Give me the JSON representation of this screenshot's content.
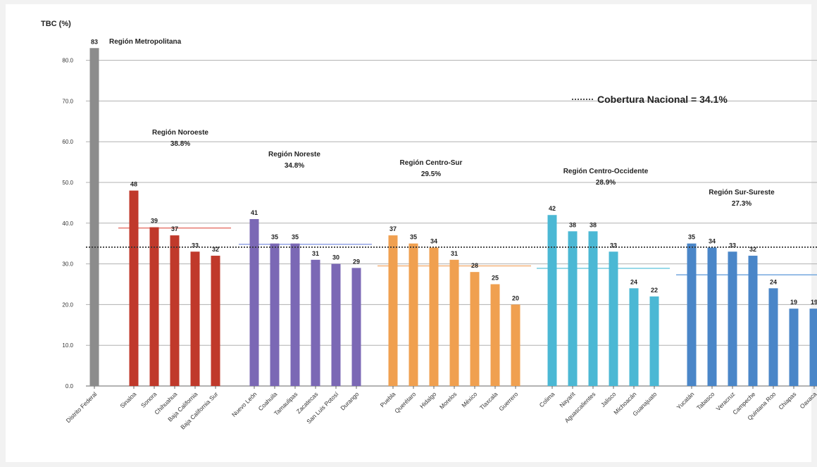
{
  "chart_data": {
    "type": "bar",
    "ylabel": "TBC (%)",
    "ylim": [
      0,
      85
    ],
    "yticks": [
      "0.0",
      "10.0",
      "20.0",
      "30.0",
      "40.0",
      "50.0",
      "60.0",
      "70.0",
      "80.0"
    ],
    "grid": true,
    "reference_line": {
      "label": "Cobertura Nacional = 34.1%",
      "value": 34.1
    },
    "regions": [
      {
        "name": "Región Metropolitana",
        "average_label": "",
        "average": null,
        "color": "#8c8c8c",
        "states": [
          {
            "name": "Distrito Federal",
            "value": 83,
            "label": "83"
          }
        ]
      },
      {
        "name": "Región Noroeste",
        "average_label": "38.8%",
        "average": 38.8,
        "color": "#c0392b",
        "states": [
          {
            "name": "Sinaloa",
            "value": 48,
            "label": "48"
          },
          {
            "name": "Sonora",
            "value": 39,
            "label": "39"
          },
          {
            "name": "Chihuahua",
            "value": 37,
            "label": "37"
          },
          {
            "name": "Baja California",
            "value": 33,
            "label": "33"
          },
          {
            "name": "Baja California Sur",
            "value": 32,
            "label": "32"
          }
        ]
      },
      {
        "name": "Región Noreste",
        "average_label": "34.8%",
        "average": 34.8,
        "color": "#7b68b5",
        "states": [
          {
            "name": "Nuevo León",
            "value": 41,
            "label": "41"
          },
          {
            "name": "Coahuila",
            "value": 35,
            "label": "35"
          },
          {
            "name": "Tamaulipas",
            "value": 35,
            "label": "35"
          },
          {
            "name": "Zacatecas",
            "value": 31,
            "label": "31"
          },
          {
            "name": "San Luis Potosí",
            "value": 30,
            "label": "30"
          },
          {
            "name": "Durango",
            "value": 29,
            "label": "29"
          }
        ]
      },
      {
        "name": "Región Centro-Sur",
        "average_label": "29.5%",
        "average": 29.5,
        "color": "#f0a050",
        "states": [
          {
            "name": "Puebla",
            "value": 37,
            "label": "37"
          },
          {
            "name": "Querétaro",
            "value": 35,
            "label": "35"
          },
          {
            "name": "Hidalgo",
            "value": 34,
            "label": "34"
          },
          {
            "name": "Morelos",
            "value": 31,
            "label": "31"
          },
          {
            "name": "México",
            "value": 28,
            "label": "28"
          },
          {
            "name": "Tlaxcala",
            "value": 25,
            "label": "25"
          },
          {
            "name": "Guerrero",
            "value": 20,
            "label": "20"
          }
        ]
      },
      {
        "name": "Región Centro-Occidente",
        "average_label": "28.9%",
        "average": 28.9,
        "color": "#4bb8d4",
        "states": [
          {
            "name": "Colima",
            "value": 42,
            "label": "42"
          },
          {
            "name": "Nayarit",
            "value": 38,
            "label": "38"
          },
          {
            "name": "Aguascalientes",
            "value": 38,
            "label": "38"
          },
          {
            "name": "Jalisco",
            "value": 33,
            "label": "33"
          },
          {
            "name": "Michoacán",
            "value": 24,
            "label": "24"
          },
          {
            "name": "Guanajuato",
            "value": 22,
            "label": "22"
          }
        ]
      },
      {
        "name": "Región Sur-Sureste",
        "average_label": "27.3%",
        "average": 27.3,
        "color": "#4a86c8",
        "states": [
          {
            "name": "Yucatán",
            "value": 35,
            "label": "35"
          },
          {
            "name": "Tabasco",
            "value": 34,
            "label": "34"
          },
          {
            "name": "Veracruz",
            "value": 33,
            "label": "33"
          },
          {
            "name": "Campeche",
            "value": 32,
            "label": "32"
          },
          {
            "name": "Quintana Roo",
            "value": 24,
            "label": "24"
          },
          {
            "name": "Chiapas",
            "value": 19,
            "label": "19"
          },
          {
            "name": "Oaxaca",
            "value": 19,
            "label": "19"
          }
        ]
      }
    ]
  }
}
